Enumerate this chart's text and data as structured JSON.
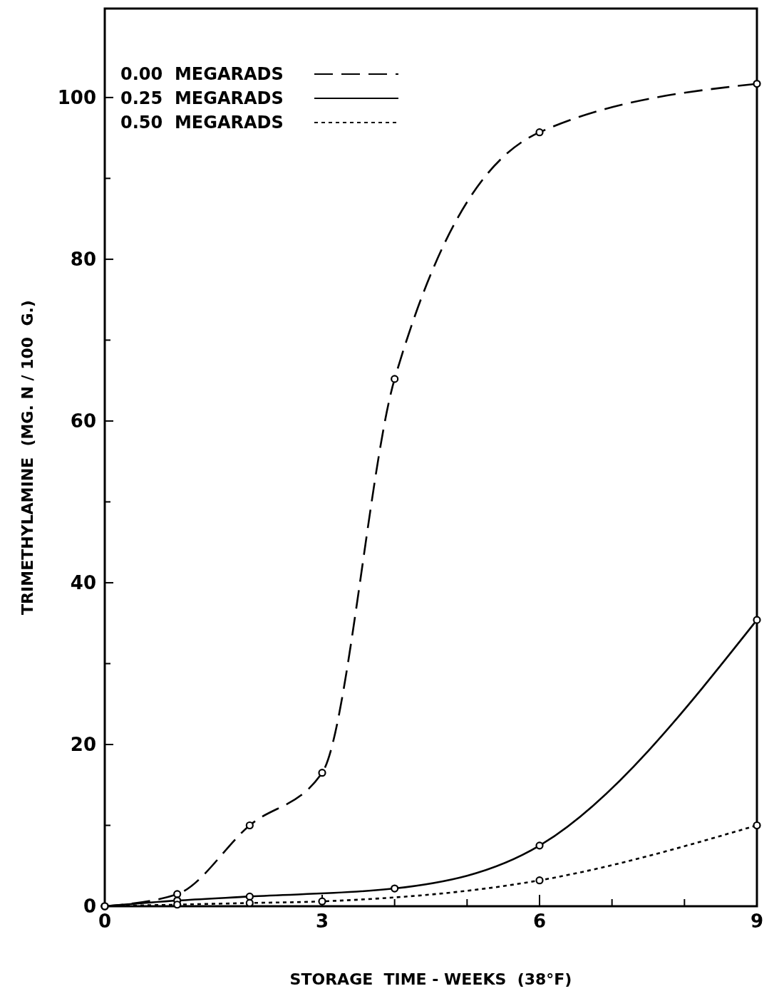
{
  "chart_data": {
    "type": "line",
    "xlabel": "STORAGE  TIME - WEEKS  (38°F)",
    "ylabel": "TRIMETHYLAMINE  (MG. N / 100  G.)",
    "x": [
      0,
      1,
      2,
      3,
      4,
      6,
      9
    ],
    "series": [
      {
        "name": "0.00  MEGARADS",
        "color": "#000000",
        "line_style": "dashed",
        "values": [
          0,
          1.5,
          10,
          16.5,
          65.2,
          95.7,
          101.7
        ]
      },
      {
        "name": "0.25  MEGARADS",
        "color": "#000000",
        "line_style": "solid",
        "x": [
          0,
          1,
          2,
          4,
          6,
          9
        ],
        "values": [
          0,
          0.7,
          1.2,
          2.2,
          7.5,
          35.4
        ]
      },
      {
        "name": "0.50  MEGARADS",
        "color": "#000000",
        "line_style": "dotted",
        "x": [
          0,
          1,
          2,
          3,
          6,
          9
        ],
        "values": [
          0,
          0.2,
          0.4,
          0.6,
          3.2,
          10
        ]
      }
    ],
    "xlim": [
      0,
      9
    ],
    "ylim": [
      0,
      111
    ],
    "xticks": [
      0,
      {
        "value": 1,
        "label": null
      },
      {
        "value": 2,
        "label": null
      },
      3,
      {
        "value": 4,
        "label": null
      },
      {
        "value": 5,
        "label": null
      },
      6,
      {
        "value": 7,
        "label": null
      },
      {
        "value": 8,
        "label": null
      },
      9
    ],
    "yticks": [
      0,
      {
        "value": 10,
        "label": null
      },
      20,
      {
        "value": 30,
        "label": null
      },
      40,
      {
        "value": 50,
        "label": null
      },
      60,
      {
        "value": 70,
        "label": null
      },
      80,
      {
        "value": 90,
        "label": null
      },
      100
    ],
    "marker": "circle",
    "legend": "top left",
    "grid": false
  }
}
